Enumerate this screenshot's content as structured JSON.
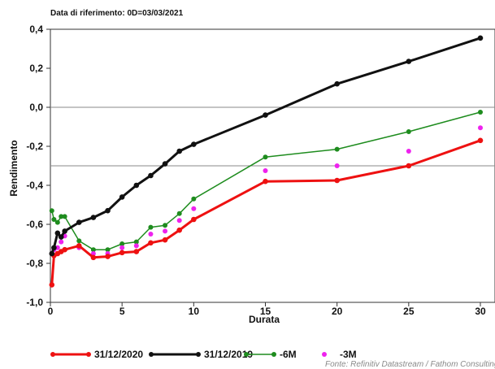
{
  "chart_data": {
    "type": "line",
    "title": "Data di riferimento: 0D=03/03/2021",
    "xlabel": "Durata",
    "ylabel": "Rendimento",
    "xlim": [
      0,
      30
    ],
    "ylim": [
      -1.0,
      0.4
    ],
    "xticks": [
      0,
      5,
      10,
      15,
      20,
      25,
      30
    ],
    "yticks": [
      -1.0,
      -0.8,
      -0.6,
      -0.4,
      -0.2,
      0.0,
      0.2,
      0.4
    ],
    "ytick_labels": [
      "-1,0",
      "-0,8",
      "-0,6",
      "-0,4",
      "-0,2",
      "0,0",
      "0,2",
      "0,4"
    ],
    "reference_lines": [
      0.0,
      -0.3
    ],
    "grid": false,
    "legend_position": "bottom",
    "source": "Fonte: Refinitiv Datastream / Fathom Consulting",
    "series": [
      {
        "name": "31/12/2020",
        "color": "#ee1111",
        "style": "line-marker",
        "points": [
          [
            0.1,
            -0.91
          ],
          [
            0.25,
            -0.76
          ],
          [
            0.5,
            -0.75
          ],
          [
            0.75,
            -0.74
          ],
          [
            1,
            -0.73
          ],
          [
            2,
            -0.71
          ],
          [
            3,
            -0.77
          ],
          [
            4,
            -0.765
          ],
          [
            5,
            -0.745
          ],
          [
            6,
            -0.74
          ],
          [
            7,
            -0.695
          ],
          [
            8,
            -0.68
          ],
          [
            9,
            -0.63
          ],
          [
            10,
            -0.575
          ],
          [
            15,
            -0.38
          ],
          [
            20,
            -0.375
          ],
          [
            25,
            -0.3
          ],
          [
            30,
            -0.17
          ]
        ]
      },
      {
        "name": "31/12/2019",
        "color": "#111111",
        "style": "line-marker",
        "points": [
          [
            0.1,
            -0.75
          ],
          [
            0.25,
            -0.72
          ],
          [
            0.5,
            -0.645
          ],
          [
            0.75,
            -0.665
          ],
          [
            1,
            -0.635
          ],
          [
            2,
            -0.59
          ],
          [
            3,
            -0.565
          ],
          [
            4,
            -0.53
          ],
          [
            5,
            -0.46
          ],
          [
            6,
            -0.4
          ],
          [
            7,
            -0.35
          ],
          [
            8,
            -0.29
          ],
          [
            9,
            -0.225
          ],
          [
            10,
            -0.19
          ],
          [
            15,
            -0.04
          ],
          [
            20,
            0.12
          ],
          [
            25,
            0.235
          ],
          [
            30,
            0.355
          ]
        ]
      },
      {
        "name": "-6M",
        "color": "#1e8c1e",
        "style": "line-marker",
        "points": [
          [
            0.1,
            -0.53
          ],
          [
            0.25,
            -0.575
          ],
          [
            0.5,
            -0.59
          ],
          [
            0.75,
            -0.56
          ],
          [
            1,
            -0.56
          ],
          [
            2,
            -0.685
          ],
          [
            3,
            -0.73
          ],
          [
            4,
            -0.73
          ],
          [
            5,
            -0.7
          ],
          [
            6,
            -0.69
          ],
          [
            7,
            -0.615
          ],
          [
            8,
            -0.605
          ],
          [
            9,
            -0.545
          ],
          [
            10,
            -0.47
          ],
          [
            15,
            -0.255
          ],
          [
            20,
            -0.215
          ],
          [
            25,
            -0.125
          ],
          [
            30,
            -0.025
          ]
        ]
      },
      {
        "name": "-3M",
        "color": "#ee22ee",
        "style": "marker",
        "points": [
          [
            0.1,
            -0.75
          ],
          [
            0.25,
            -0.73
          ],
          [
            0.5,
            -0.72
          ],
          [
            0.75,
            -0.69
          ],
          [
            1,
            -0.66
          ],
          [
            2,
            -0.72
          ],
          [
            3,
            -0.75
          ],
          [
            4,
            -0.75
          ],
          [
            5,
            -0.72
          ],
          [
            6,
            -0.71
          ],
          [
            7,
            -0.65
          ],
          [
            8,
            -0.635
          ],
          [
            9,
            -0.58
          ],
          [
            10,
            -0.52
          ],
          [
            15,
            -0.325
          ],
          [
            20,
            -0.3
          ],
          [
            25,
            -0.225
          ],
          [
            30,
            -0.105
          ]
        ]
      }
    ]
  }
}
